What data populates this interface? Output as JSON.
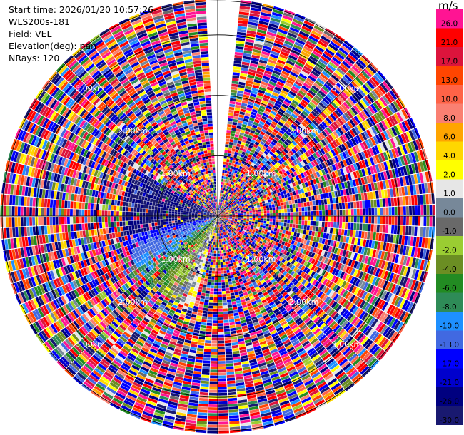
{
  "info": {
    "start_time": "Start time: 2026/01/20 10:57:26",
    "instrument": "WLS200s-181",
    "field": "Field: VEL",
    "elevation": "Elevation(deg): nan",
    "nrays": "NRays: 120"
  },
  "colorbar": {
    "unit": "m/s",
    "bins": [
      {
        "label": "26.0",
        "color": "#ff1493"
      },
      {
        "label": "21.0",
        "color": "#ff0000"
      },
      {
        "label": "17.0",
        "color": "#dc143c"
      },
      {
        "label": "13.0",
        "color": "#ff4500"
      },
      {
        "label": "10.0",
        "color": "#ff6347"
      },
      {
        "label": "8.0",
        "color": "#fa8072"
      },
      {
        "label": "6.0",
        "color": "#ffa500"
      },
      {
        "label": "4.0",
        "color": "#ffd700"
      },
      {
        "label": "2.0",
        "color": "#ffff00"
      },
      {
        "label": "1.0",
        "color": "#e6e6e6"
      },
      {
        "label": "0.0",
        "color": "#778899"
      },
      {
        "label": "-1.0",
        "color": "#696969"
      },
      {
        "label": "-2.0",
        "color": "#9acd32"
      },
      {
        "label": "-4.0",
        "color": "#6b8e23"
      },
      {
        "label": "-6.0",
        "color": "#228b22"
      },
      {
        "label": "-8.0",
        "color": "#2e8b57"
      },
      {
        "label": "-10.0",
        "color": "#1e90ff"
      },
      {
        "label": "-13.0",
        "color": "#4169e1"
      },
      {
        "label": "-17.0",
        "color": "#0000ff"
      },
      {
        "label": "-21.0",
        "color": "#0000cd"
      },
      {
        "label": "-26.0",
        "color": "#000080"
      },
      {
        "label": "-30.0",
        "color": "#191970"
      }
    ]
  },
  "chart_data": {
    "type": "heatmap",
    "subtype": "ppi-polar",
    "field": "VEL",
    "nrays": 120,
    "rays_missing_north": 3,
    "range_rings_km": [
      1.0,
      2.0,
      3.0
    ],
    "ring_labels": [
      "1.00km",
      "2.00km",
      "3.00km"
    ],
    "max_range_km": 3.6,
    "range_gates": 75,
    "near_coherent_region": {
      "from_azimuth_deg": 195,
      "to_azimuth_deg": 300,
      "max_range_km": 1.6,
      "velocity_from_ms": -26.0,
      "velocity_to_ms": 6.0
    },
    "vmin": -30.0,
    "vmax": 30.0
  }
}
